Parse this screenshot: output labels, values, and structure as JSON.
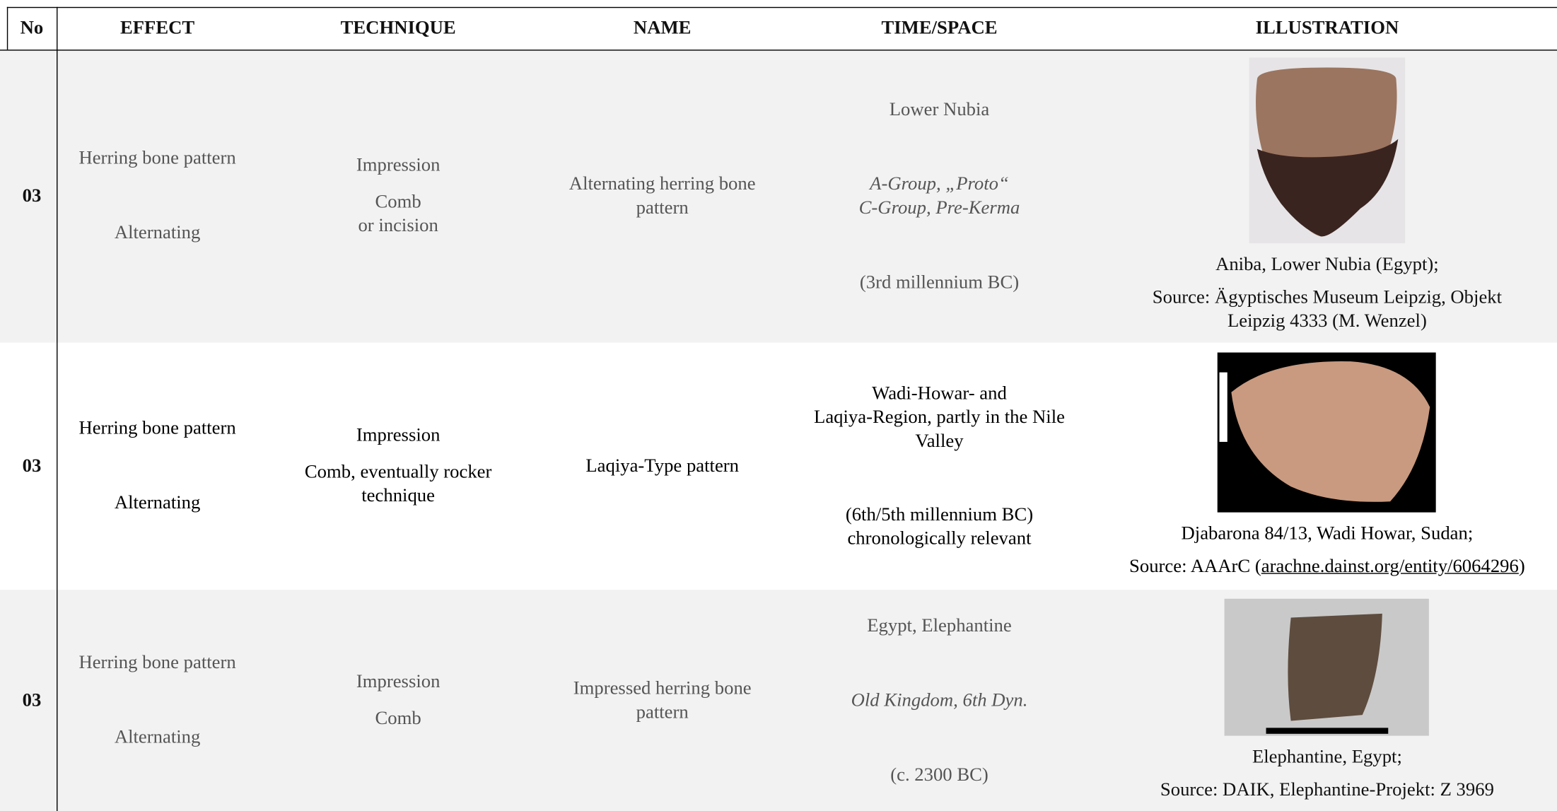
{
  "table": {
    "headers": [
      "No",
      "EFFECT",
      "TECHNIQUE",
      "NAME",
      "TIME/SPACE",
      "ILLUSTRATION"
    ],
    "rows": [
      {
        "no": "03",
        "effect": [
          "Herring bone pattern",
          "Alternating"
        ],
        "technique": [
          [
            "Impression"
          ],
          [
            "Comb",
            "or incision"
          ]
        ],
        "name": [
          "Alternating herring bone",
          "pattern"
        ],
        "time_space": [
          [
            "Lower Nubia"
          ],
          [
            "A-Group, „Proto“",
            "C-Group, Pre-Kerma"
          ],
          [
            "(3rd millennium BC)"
          ]
        ],
        "caption": "Aniba, Lower Nubia (Egypt);",
        "source": [
          "Source: Ägyptisches Museum Leipzig, Objekt",
          "Leipzig 4333 (M. Wenzel)"
        ]
      },
      {
        "no": "03",
        "effect": [
          "Herring bone pattern",
          "Alternating"
        ],
        "technique": [
          [
            "Impression"
          ],
          [
            "Comb, eventually rocker",
            "technique"
          ]
        ],
        "name": [
          "Laqiya-Type pattern"
        ],
        "time_space": [
          [
            "Wadi-Howar- and",
            "Laqiya-Region, partly in the Nile",
            "Valley"
          ],
          [
            "(6th/5th millennium BC)",
            "chronologically relevant"
          ]
        ],
        "caption": "Djabarona 84/13, Wadi Howar, Sudan;",
        "source_prefix": "Source: AAArC (",
        "source_link": "arachne.dainst.org/entity/6064296",
        "source_suffix": ")"
      },
      {
        "no": "03",
        "effect": [
          "Herring bone pattern",
          "Alternating"
        ],
        "technique": [
          [
            "Impression"
          ],
          [
            "Comb"
          ]
        ],
        "name": [
          "Impressed herring bone",
          "pattern"
        ],
        "time_space": [
          [
            "Egypt, Elephantine"
          ],
          [
            "Old Kingdom, 6th Dyn."
          ],
          [
            "(c. 2300 BC)"
          ]
        ],
        "caption": "Elephantine, Egypt;",
        "source": [
          "Source: DAIK, Elephantine-Projekt: Z 3969"
        ]
      }
    ]
  }
}
